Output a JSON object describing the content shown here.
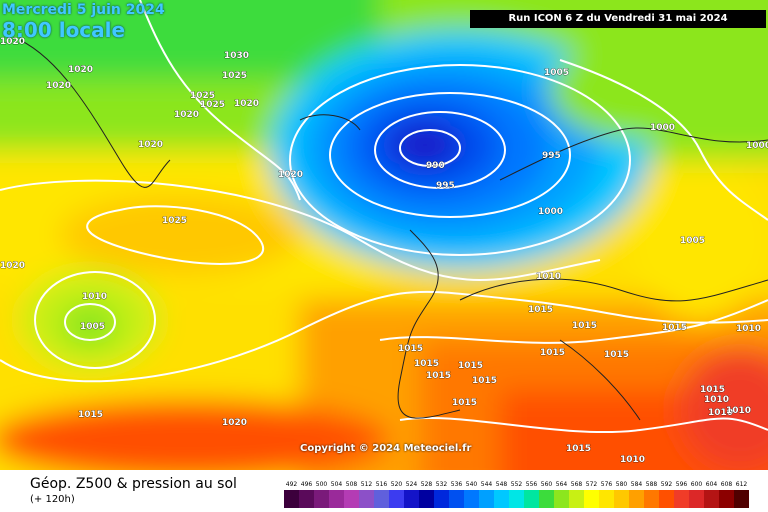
{
  "header": {
    "date_line1": "Mercredi 5 juin 2024",
    "date_line2": "8:00 locale",
    "run_info": "Run ICON 6 Z du Vendredi 31 mai 2024",
    "copyright": "Copyright © 2024 Meteociel.fr"
  },
  "footer": {
    "title": "Géop. Z500 & pression au sol",
    "subtitle": "(+ 120h)"
  },
  "legend_scale": {
    "values": [
      "492",
      "496",
      "500",
      "504",
      "508",
      "512",
      "516",
      "520",
      "524",
      "528",
      "532",
      "536",
      "540",
      "544",
      "548",
      "552",
      "556",
      "560",
      "564",
      "568",
      "572",
      "576",
      "580",
      "584",
      "588",
      "592",
      "596",
      "600",
      "604",
      "608",
      "612"
    ],
    "colors": [
      "#3c003c",
      "#5a0a5a",
      "#7a1a7a",
      "#9a2a9a",
      "#b43cb4",
      "#8c50c8",
      "#6060dc",
      "#3c3cf0",
      "#1414c8",
      "#0000a0",
      "#0028dc",
      "#0050f0",
      "#0078ff",
      "#00a0ff",
      "#00c8ff",
      "#00e6e6",
      "#00e6a0",
      "#3cdc3c",
      "#8ce61e",
      "#c8f014",
      "#ffff00",
      "#ffe600",
      "#ffc800",
      "#ffa000",
      "#ff7800",
      "#ff5000",
      "#f03c28",
      "#dc2828",
      "#b41414",
      "#8c0000",
      "#500000"
    ]
  },
  "isobar_labels": [
    "1020",
    "1020",
    "1020",
    "1030",
    "1025",
    "1025",
    "1025",
    "1020",
    "1020",
    "1020",
    "1020",
    "1025",
    "1020",
    "1010",
    "1005",
    "1015",
    "990",
    "995",
    "995",
    "1000",
    "1005",
    "1000",
    "1000",
    "1005",
    "1010",
    "1015",
    "1015",
    "1015",
    "1015",
    "1015",
    "1015",
    "1015",
    "1015",
    "1015",
    "1015",
    "1015",
    "1020",
    "1015",
    "1015",
    "1010",
    "1010",
    "1010",
    "1010",
    "1010"
  ]
}
